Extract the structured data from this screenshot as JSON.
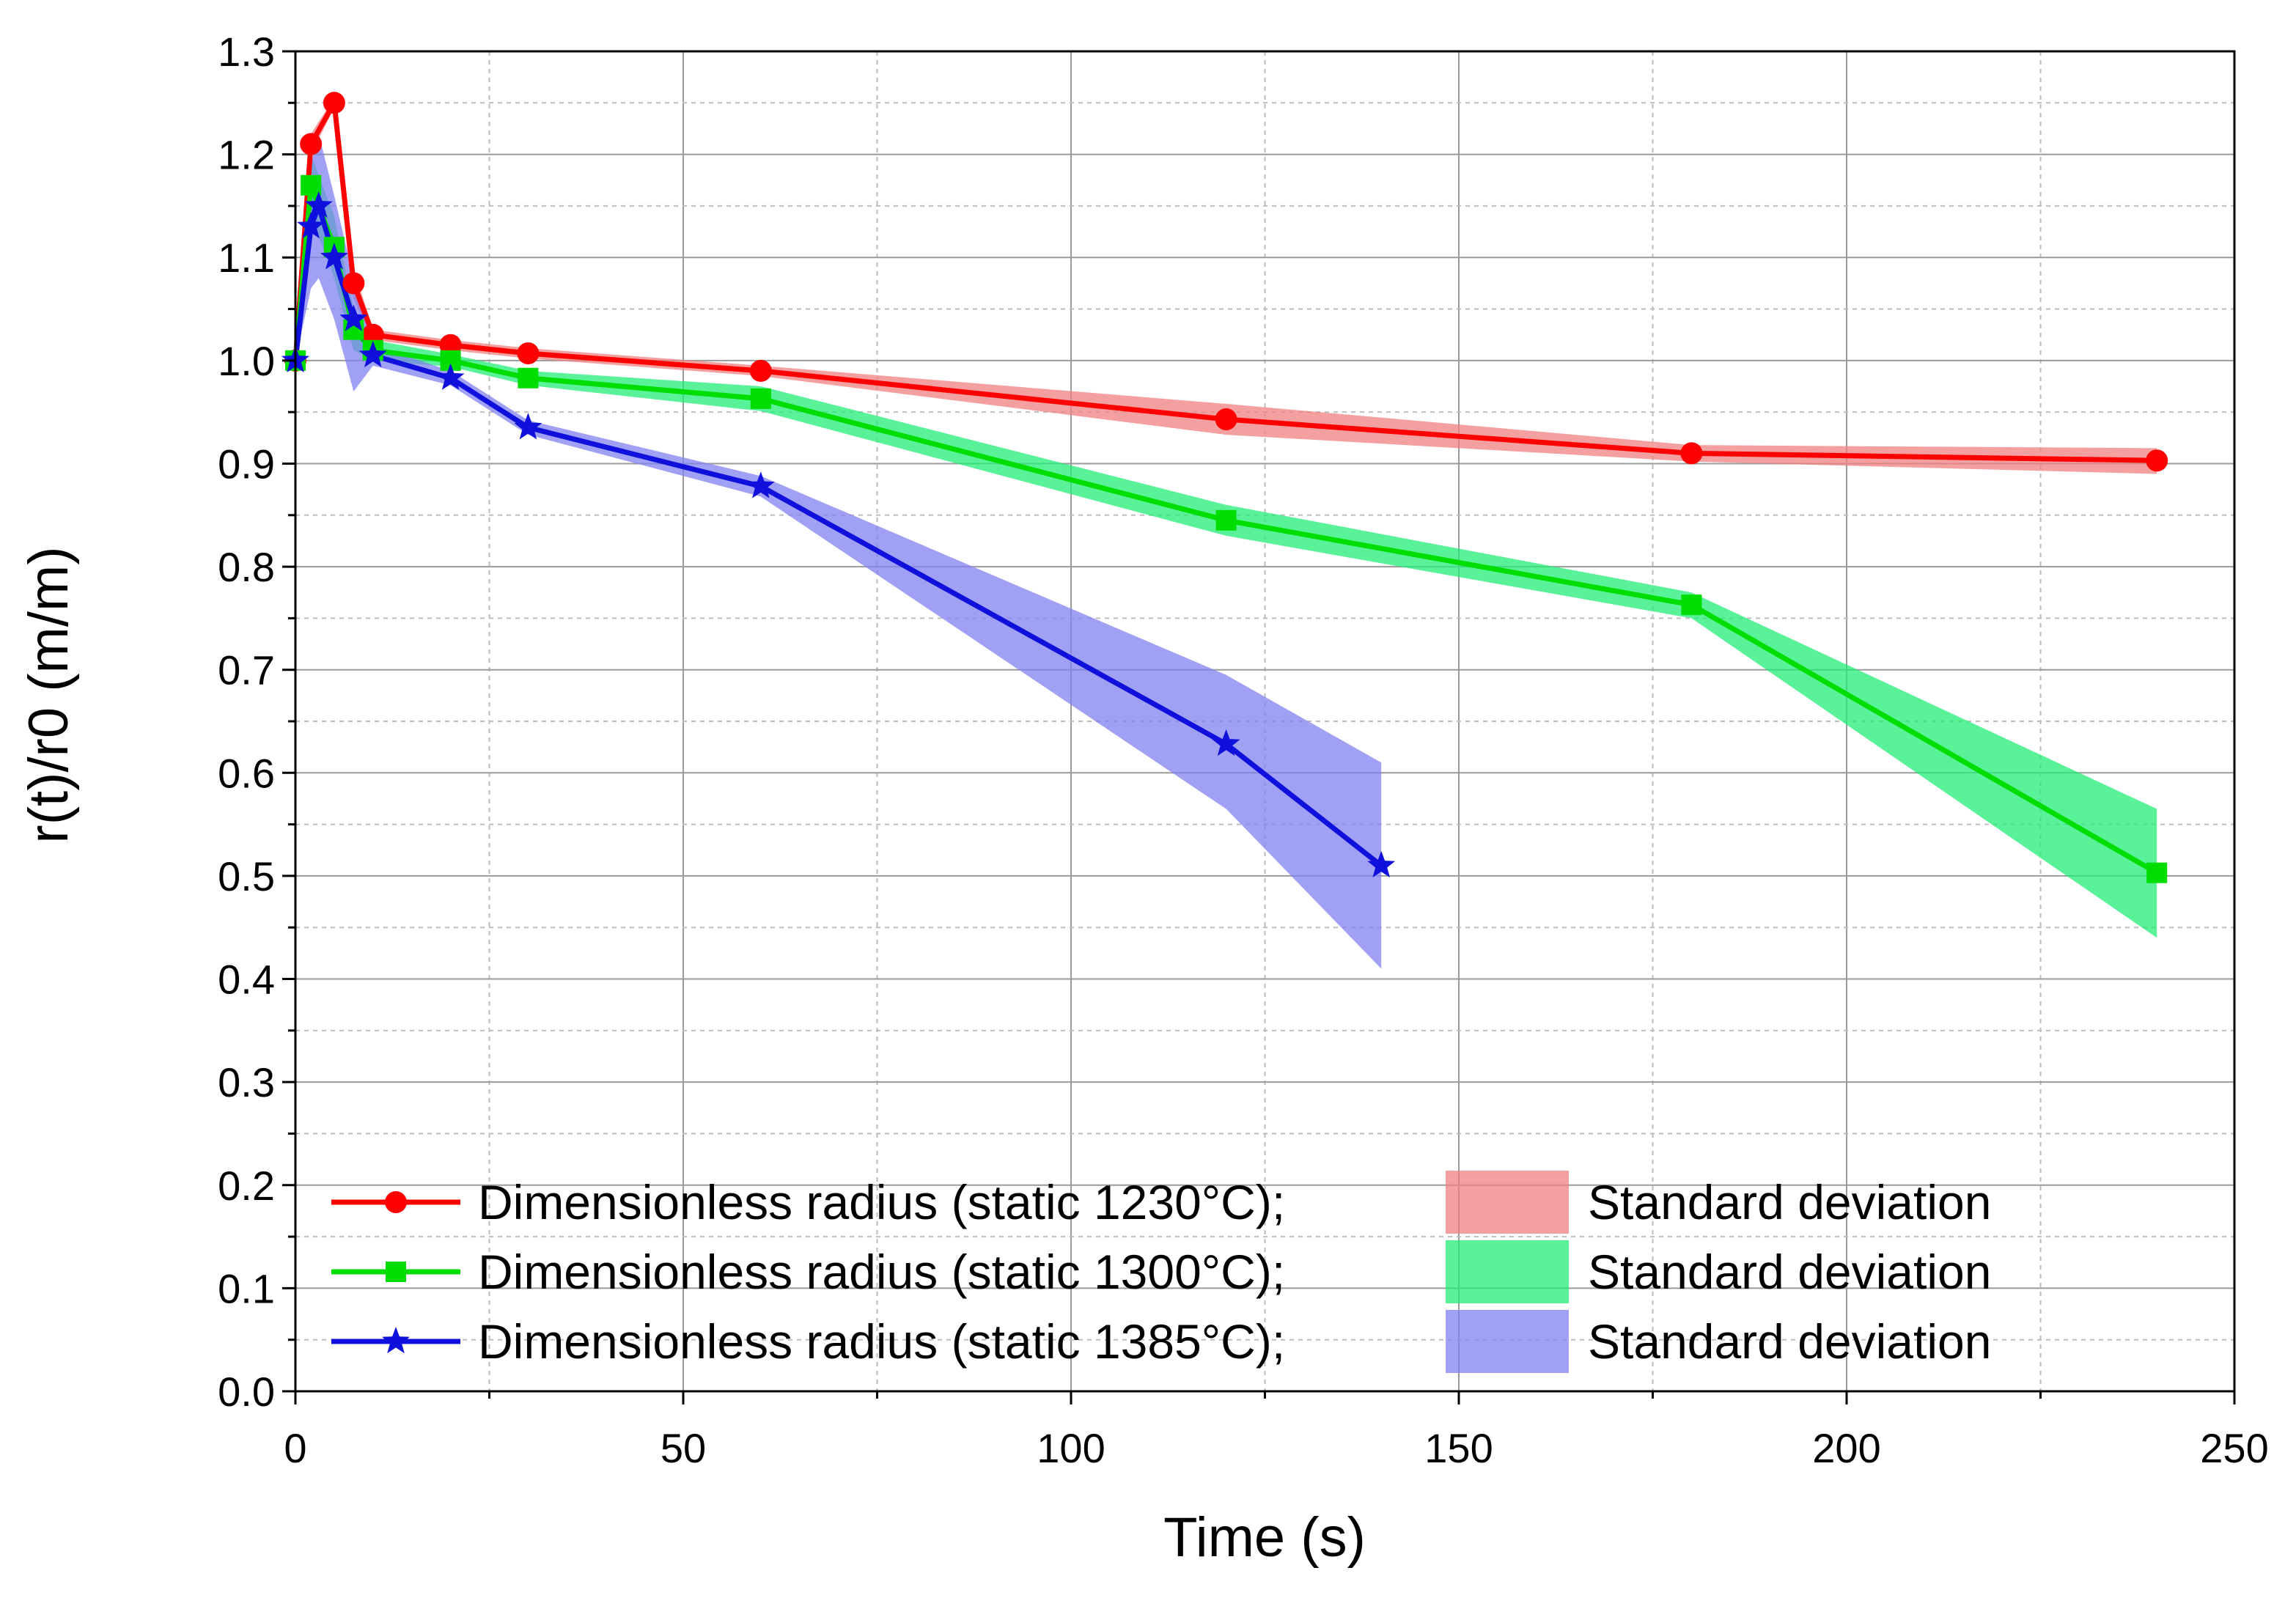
{
  "chart_data": {
    "type": "line",
    "title": "",
    "xlabel": "Time (s)",
    "ylabel": "r(t)/r0 (m/m)",
    "xlim": [
      0,
      250
    ],
    "ylim": [
      0,
      1.3
    ],
    "xticks": [
      0,
      50,
      100,
      150,
      200,
      250
    ],
    "xtick_labels": [
      "0",
      "50",
      "100",
      "150",
      "200",
      "250"
    ],
    "yticks": [
      0.0,
      0.1,
      0.2,
      0.3,
      0.4,
      0.5,
      0.6,
      0.7,
      0.8,
      0.9,
      1.0,
      1.1,
      1.2,
      1.3
    ],
    "ytick_labels": [
      "0.0",
      "0.1",
      "0.2",
      "0.3",
      "0.4",
      "0.5",
      "0.6",
      "0.7",
      "0.8",
      "0.9",
      "1.0",
      "1.1",
      "1.2",
      "1.3"
    ],
    "grid": true,
    "legend_position": "bottom-left",
    "series": [
      {
        "name": "Dimensionless radius (static 1230°C);",
        "band_label": "Standard deviation",
        "color": "#ff0000",
        "band_color": "#f08080",
        "marker": "circle",
        "x": [
          0,
          2,
          5,
          7.5,
          10,
          20,
          30,
          60,
          120,
          180,
          240
        ],
        "values": [
          1.0,
          1.21,
          1.25,
          1.075,
          1.025,
          1.015,
          1.007,
          0.99,
          0.943,
          0.91,
          0.903
        ],
        "upper": [
          1.0,
          1.22,
          1.255,
          1.09,
          1.03,
          1.02,
          1.012,
          0.995,
          0.958,
          0.918,
          0.915
        ],
        "lower": [
          1.0,
          1.2,
          1.245,
          1.06,
          1.02,
          1.01,
          1.002,
          0.985,
          0.928,
          0.902,
          0.89
        ]
      },
      {
        "name": "Dimensionless radius (static 1300°C);",
        "band_label": "Standard deviation",
        "color": "#00dd00",
        "band_color": "#22ee77",
        "marker": "square",
        "x": [
          0,
          2,
          5,
          7.5,
          10,
          20,
          30,
          60,
          120,
          180,
          240
        ],
        "values": [
          1.0,
          1.17,
          1.11,
          1.03,
          1.01,
          1.0,
          0.983,
          0.963,
          0.845,
          0.763,
          0.503
        ],
        "upper": [
          1.0,
          1.2,
          1.14,
          1.05,
          1.02,
          1.006,
          0.99,
          0.975,
          0.86,
          0.775,
          0.565
        ],
        "lower": [
          1.0,
          1.14,
          1.08,
          1.01,
          1.0,
          0.994,
          0.976,
          0.951,
          0.83,
          0.75,
          0.44
        ]
      },
      {
        "name": "Dimensionless radius (static 1385°C);",
        "band_label": "Standard deviation",
        "color": "#1010dd",
        "band_color": "#8080f0",
        "marker": "star",
        "x": [
          0,
          2,
          3,
          5,
          7.5,
          10,
          20,
          30,
          60,
          120,
          140
        ],
        "values": [
          1.0,
          1.13,
          1.15,
          1.1,
          1.04,
          1.005,
          0.983,
          0.935,
          0.878,
          0.628,
          0.51
        ],
        "upper": [
          1.0,
          1.19,
          1.22,
          1.16,
          1.08,
          1.015,
          0.99,
          0.942,
          0.888,
          0.695,
          0.61
        ],
        "lower": [
          1.0,
          1.07,
          1.08,
          1.04,
          0.97,
          0.995,
          0.976,
          0.928,
          0.868,
          0.565,
          0.41
        ]
      }
    ]
  }
}
